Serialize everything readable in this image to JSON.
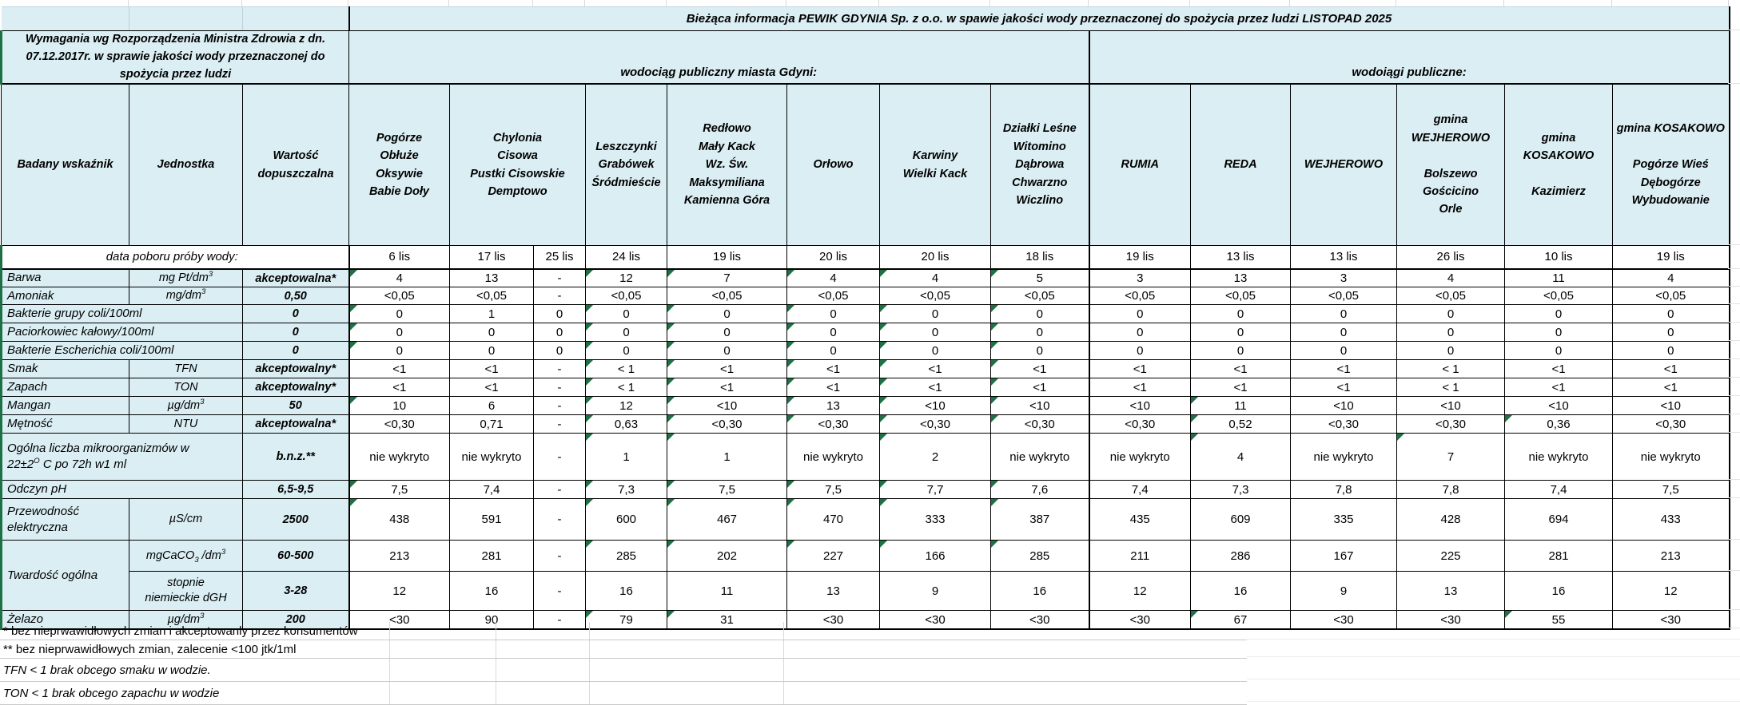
{
  "title": "Bieżąca informacja PEWIK GDYNIA Sp. z o.o. w spawie jakości wody przeznaczonej do spożycia przez ludzi  LISTOPAD 2025",
  "requirements_note": "Wymagania wg Rozporządzenia Ministra Zdrowia z dn. 07.12.2017r. w sprawie jakości wody przeznaczonej do spożycia przez ludzi",
  "sections": {
    "gdynia": "wodociąg publiczny miasta Gdyni:",
    "public": "wodoiągi publiczne:"
  },
  "column_headers": {
    "indicator": "Badany wskaźnik",
    "unit": "Jednostka",
    "limit": "Wartość\ndopuszczalna"
  },
  "locations": [
    {
      "name": "Pogórze\nObłuże\nOksywie\nBabie Doły",
      "span": 1
    },
    {
      "name": "Chylonia\nCisowa\nPustki Cisowskie\nDemptowo",
      "span": 2
    },
    {
      "name": "Leszczynki\nGrabówek\nŚródmieście",
      "span": 1
    },
    {
      "name": "Redłowo\nMały Kack\nWz. Św.\nMaksymiliana\nKamienna Góra",
      "span": 1
    },
    {
      "name": "Orłowo",
      "span": 1
    },
    {
      "name": "Karwiny\nWielki Kack",
      "span": 1
    },
    {
      "name": "Działki Leśne\nWitomino\nDąbrowa\nChwarzno\nWiczlino",
      "span": 1
    },
    {
      "name": "RUMIA",
      "span": 1
    },
    {
      "name": "REDA",
      "span": 1
    },
    {
      "name": "WEJHEROWO",
      "span": 1
    },
    {
      "name": "gmina\nWEJHEROWO\n\nBolszewo\nGościcino\nOrle",
      "span": 1
    },
    {
      "name": "gmina\nKOSAKOWO\n\nKazimierz",
      "span": 1
    },
    {
      "name": "gmina KOSAKOWO\n\nPogórze Wieś\nDębogórze\nWybudowanie",
      "span": 1
    }
  ],
  "sample_date_label": "data poboru próby wody:",
  "sample_dates": [
    "6 lis",
    "17 lis",
    "25 lis",
    "24 lis",
    "19 lis",
    "20 lis",
    "20 lis",
    "18 lis",
    "19 lis",
    "13 lis",
    "13 lis",
    "26 lis",
    "10 lis",
    "19 lis"
  ],
  "rows": [
    {
      "label": "Barwa",
      "merged": false,
      "unit": "mg Pt/dm^3",
      "limit": "akceptowalna*",
      "values": [
        "4",
        "13",
        "-",
        "12",
        "7",
        "4",
        "4",
        "5",
        "3",
        "13",
        "3",
        "4",
        "11",
        "4"
      ],
      "flags": [
        1,
        0,
        0,
        1,
        1,
        1,
        1,
        1,
        0,
        0,
        0,
        0,
        0,
        0
      ]
    },
    {
      "label": "Amoniak",
      "merged": false,
      "unit": "mg/dm^3",
      "limit": "0,50",
      "values": [
        "<0,05",
        "<0,05",
        "-",
        "<0,05",
        "<0,05",
        "<0,05",
        "<0,05",
        "<0,05",
        "<0,05",
        "<0,05",
        "<0,05",
        "<0,05",
        "<0,05",
        "<0,05"
      ],
      "flags": [
        0,
        0,
        0,
        0,
        0,
        0,
        0,
        0,
        0,
        0,
        0,
        0,
        0,
        0
      ]
    },
    {
      "label": "Bakterie grupy coli/100ml",
      "merged": true,
      "unit": null,
      "limit": "0",
      "values": [
        "0",
        "1",
        "0",
        "0",
        "0",
        "0",
        "0",
        "0",
        "0",
        "0",
        "0",
        "0",
        "0",
        "0"
      ],
      "flags": [
        1,
        0,
        0,
        1,
        1,
        1,
        1,
        1,
        0,
        0,
        0,
        0,
        0,
        0
      ]
    },
    {
      "label": "Paciorkowiec kałowy/100ml",
      "merged": true,
      "unit": null,
      "limit": "0",
      "values": [
        "0",
        "0",
        "0",
        "0",
        "0",
        "0",
        "0",
        "0",
        "0",
        "0",
        "0",
        "0",
        "0",
        "0"
      ],
      "flags": [
        1,
        0,
        0,
        1,
        1,
        1,
        1,
        1,
        0,
        0,
        0,
        0,
        0,
        0
      ]
    },
    {
      "label": "Bakterie Escherichia coli/100ml",
      "merged": true,
      "unit": null,
      "limit": "0",
      "values": [
        "0",
        "0",
        "0",
        "0",
        "0",
        "0",
        "0",
        "0",
        "0",
        "0",
        "0",
        "0",
        "0",
        "0"
      ],
      "flags": [
        1,
        0,
        0,
        1,
        1,
        1,
        1,
        1,
        0,
        0,
        0,
        0,
        0,
        0
      ]
    },
    {
      "label": "Smak",
      "merged": false,
      "unit": "TFN",
      "limit": "akceptowalny*",
      "values": [
        "<1",
        "<1",
        "-",
        "< 1",
        "<1",
        "<1",
        "<1",
        "<1",
        "<1",
        "<1",
        "<1",
        "< 1",
        "<1",
        "<1"
      ],
      "flags": [
        0,
        0,
        0,
        1,
        1,
        1,
        1,
        1,
        0,
        0,
        0,
        0,
        0,
        0
      ]
    },
    {
      "label": "Zapach",
      "merged": false,
      "unit": "TON",
      "limit": "akceptowalny*",
      "values": [
        "<1",
        "<1",
        "-",
        "< 1",
        "<1",
        "<1",
        "<1",
        "<1",
        "<1",
        "<1",
        "<1",
        "< 1",
        "<1",
        "<1"
      ],
      "flags": [
        0,
        0,
        0,
        1,
        1,
        1,
        1,
        1,
        0,
        0,
        0,
        0,
        0,
        0
      ]
    },
    {
      "label": "Mangan",
      "merged": false,
      "unit": "µg/dm^3",
      "limit": "50",
      "values": [
        "10",
        "6",
        "-",
        "12",
        "<10",
        "13",
        "<10",
        "<10",
        "<10",
        "11",
        "<10",
        "<10",
        "<10",
        "<10"
      ],
      "flags": [
        1,
        0,
        0,
        1,
        1,
        1,
        1,
        1,
        0,
        1,
        0,
        0,
        0,
        0
      ]
    },
    {
      "label": "Mętność",
      "merged": false,
      "unit": "NTU",
      "limit": "akceptowalna*",
      "values": [
        "<0,30",
        "0,71",
        "-",
        "0,63",
        "<0,30",
        "<0,30",
        "<0,30",
        "<0,30",
        "<0,30",
        "0,52",
        "<0,30",
        "<0,30",
        "0,36",
        "<0,30"
      ],
      "flags": [
        0,
        0,
        0,
        1,
        1,
        1,
        1,
        1,
        0,
        1,
        0,
        0,
        1,
        0
      ]
    },
    {
      "label": "Ogólna liczba mikroorganizmów w\n22±2^O C po 72h w1 ml",
      "merged": true,
      "unit": null,
      "limit": "b.n.z.**",
      "values": [
        "nie wykryto",
        "nie wykryto",
        "-",
        "1",
        "1",
        "nie wykryto",
        "2",
        "nie wykryto",
        "nie wykryto",
        "4",
        "nie wykryto",
        "7",
        "nie wykryto",
        "nie wykryto"
      ],
      "flags": [
        0,
        0,
        0,
        1,
        1,
        0,
        1,
        0,
        0,
        1,
        0,
        1,
        0,
        0
      ]
    },
    {
      "label": "Odczyn pH",
      "merged": true,
      "unit": null,
      "limit": "6,5-9,5",
      "values": [
        "7,5",
        "7,4",
        "-",
        "7,3",
        "7,5",
        "7,5",
        "7,7",
        "7,6",
        "7,4",
        "7,3",
        "7,8",
        "7,8",
        "7,4",
        "7,5"
      ],
      "flags": [
        1,
        0,
        0,
        1,
        1,
        1,
        1,
        1,
        0,
        0,
        0,
        0,
        0,
        0
      ]
    },
    {
      "label": "Przewodność\nelektryczna",
      "merged": false,
      "unit": "µS/cm",
      "limit": "2500",
      "values": [
        "438",
        "591",
        "-",
        "600",
        "467",
        "470",
        "333",
        "387",
        "435",
        "609",
        "335",
        "428",
        "694",
        "433"
      ],
      "flags": [
        1,
        0,
        0,
        1,
        1,
        1,
        1,
        1,
        0,
        0,
        0,
        0,
        0,
        0
      ]
    },
    {
      "label": "Twardość ogólna",
      "merged": false,
      "label_rowspan": 2,
      "unit": "mgCaCO~3 /dm^3",
      "limit": "60-500",
      "values": [
        "213",
        "281",
        "-",
        "285",
        "202",
        "227",
        "166",
        "285",
        "211",
        "286",
        "167",
        "225",
        "281",
        "213"
      ],
      "flags": [
        0,
        0,
        0,
        1,
        1,
        1,
        1,
        1,
        0,
        0,
        0,
        0,
        0,
        0
      ]
    },
    {
      "label": null,
      "merged": false,
      "unit": "stopnie\nniemieckie dGH",
      "limit": "3-28",
      "values": [
        "12",
        "16",
        "-",
        "16",
        "11",
        "13",
        "9",
        "16",
        "12",
        "16",
        "9",
        "13",
        "16",
        "12"
      ],
      "flags": [
        0,
        0,
        0,
        0,
        0,
        0,
        0,
        0,
        0,
        0,
        0,
        0,
        0,
        0
      ]
    },
    {
      "label": "Żelazo",
      "merged": false,
      "unit": "µg/dm^3",
      "limit": "200",
      "values": [
        "<30",
        "90",
        "-",
        "79",
        "31",
        "<30",
        "<30",
        "<30",
        "<30",
        "67",
        "<30",
        "<30",
        "55",
        "<30"
      ],
      "flags": [
        0,
        0,
        0,
        1,
        1,
        0,
        0,
        0,
        0,
        1,
        0,
        0,
        1,
        0
      ]
    }
  ],
  "footnotes": [
    {
      "text": "* bez nieprwawidłowych zmian i akceptowanly przez konsumentów",
      "italic": false
    },
    {
      "text": "** bez nieprwawidłowych zmian, zalecenie <100 jtk/1ml",
      "italic": false
    },
    {
      "text": "TFN < 1 brak obcego smaku w wodzie.",
      "italic": true
    },
    {
      "text": "TON < 1 brak obcego zapachu w wodzie",
      "italic": true
    }
  ],
  "colors": {
    "header_fill": "#DAEEF3",
    "comment_triangle_green": "#1E7145",
    "table_left_border_green": "#1E7145"
  }
}
